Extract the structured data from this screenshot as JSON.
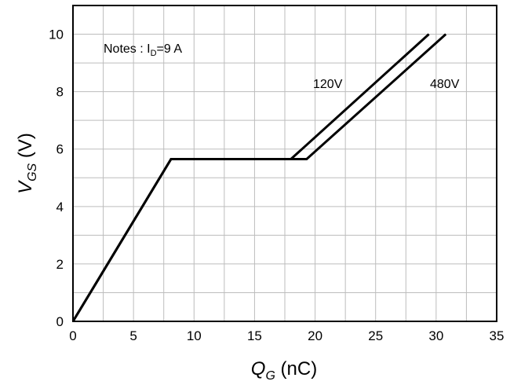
{
  "chart_data": {
    "type": "line",
    "xlabel": {
      "main": "Q",
      "sub": "G",
      "unit": " (nC)"
    },
    "ylabel": {
      "main": "V",
      "sub": "GS",
      "unit": " (V)"
    },
    "xlim": [
      0,
      35
    ],
    "ylim": [
      0,
      11
    ],
    "x_ticks": [
      0,
      5,
      10,
      15,
      20,
      25,
      30,
      35
    ],
    "y_ticks": [
      0,
      2,
      4,
      6,
      8,
      10
    ],
    "grid": true,
    "note": {
      "prefix": "Notes : I",
      "sub": "D",
      "suffix": "=9  A"
    },
    "series": [
      {
        "name": "120V",
        "x": [
          0,
          8.1,
          18.0,
          29.4
        ],
        "y": [
          0,
          5.65,
          5.65,
          10.0
        ]
      },
      {
        "name": "480V",
        "x": [
          0,
          8.1,
          19.3,
          30.8
        ],
        "y": [
          0,
          5.65,
          5.65,
          10.0
        ]
      }
    ]
  }
}
